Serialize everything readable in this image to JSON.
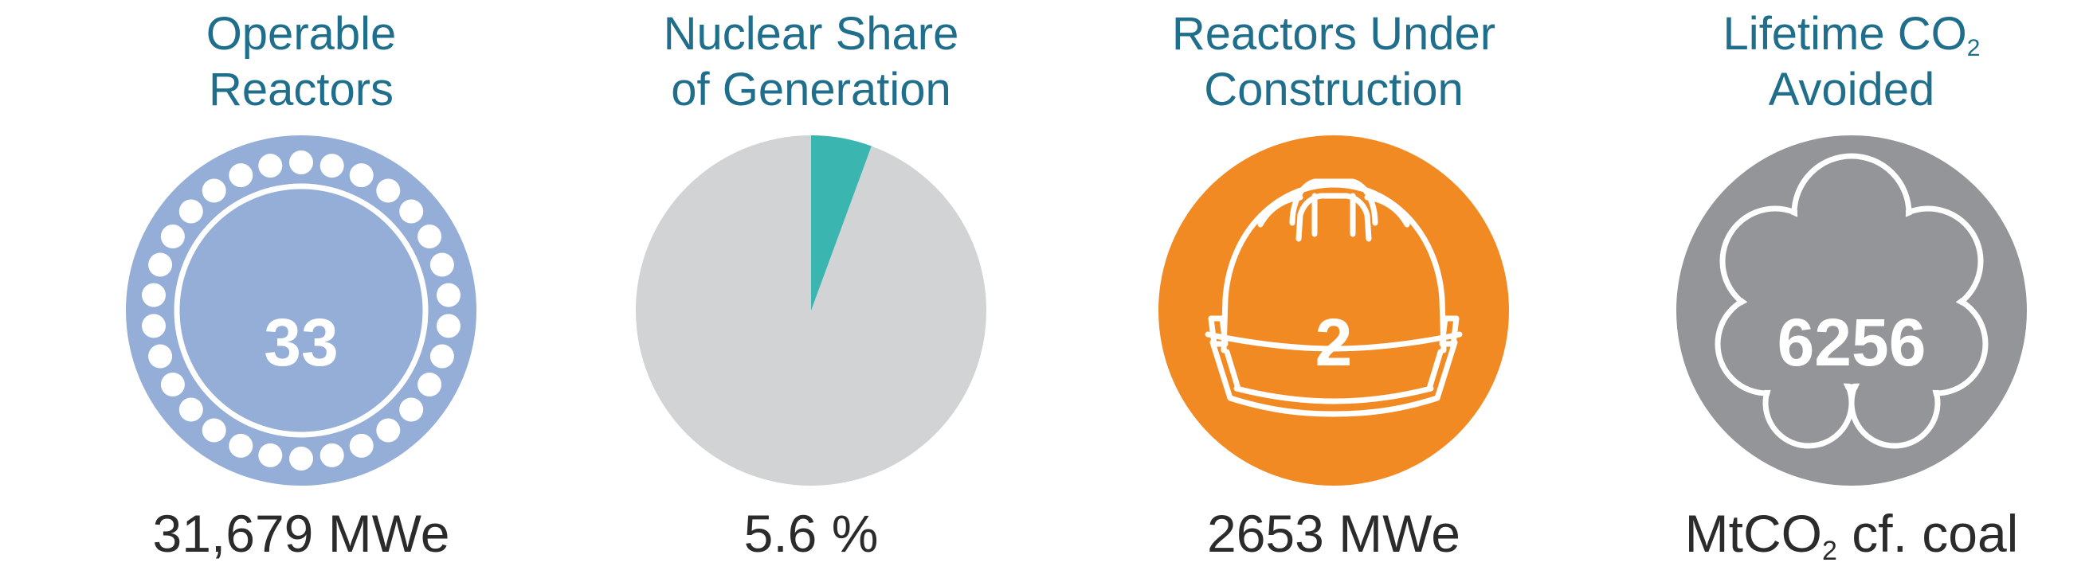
{
  "colors": {
    "title": "#1f6e8c",
    "reactors_fill": "#94aed8",
    "pie_rest": "#d1d3d4",
    "pie_slice": "#3ab5b0",
    "construction_fill": "#f28a24",
    "co2_fill": "#939598",
    "caption": "#2b2b2b"
  },
  "icons": {
    "operable": "reactor-core-icon",
    "share": "pie-chart-icon",
    "construction": "hard-hat-icon",
    "co2": "cloud-icon"
  },
  "operable": {
    "title_line1": "Operable",
    "title_line2": "Reactors",
    "value": "33",
    "caption": "31,679 MWe"
  },
  "share": {
    "title_line1": "Nuclear Share",
    "title_line2": "of Generation",
    "percent": 5.6,
    "caption": "5.6 %"
  },
  "construction": {
    "title_line1": "Reactors Under",
    "title_line2": "Construction",
    "value": "2",
    "caption": "2653 MWe"
  },
  "co2": {
    "title_line1_text": "Lifetime CO",
    "title_line1_sub": "2",
    "title_line2": "Avoided",
    "value": "6256",
    "caption_pre": "MtCO",
    "caption_sub": "2",
    "caption_post": " cf. coal"
  }
}
